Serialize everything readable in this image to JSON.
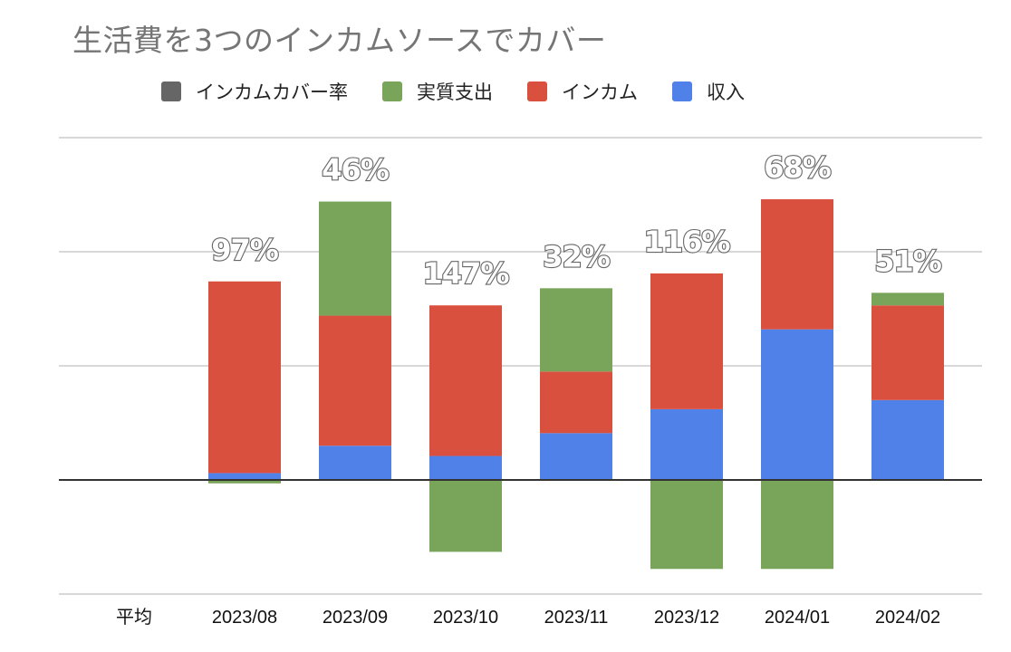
{
  "chart_data": {
    "type": "bar",
    "stacked": true,
    "title": "生活費を3つのインカムソースでカバー",
    "xlabel": "",
    "ylabel": "",
    "y_axis_labels_visible": false,
    "ylim": [
      -1,
      3
    ],
    "y_units_note": "values in gridline units (no y-axis tick labels shown)",
    "grid": true,
    "legend_position": "top",
    "categories": [
      "平均",
      "2023/08",
      "2023/09",
      "2023/10",
      "2023/11",
      "2023/12",
      "2024/01",
      "2024/02"
    ],
    "series": [
      {
        "name": "収入",
        "color": "#4f81e8",
        "values": [
          null,
          0.06,
          0.3,
          0.21,
          0.41,
          0.62,
          1.32,
          0.7
        ]
      },
      {
        "name": "インカム",
        "color": "#d9503f",
        "values": [
          null,
          1.68,
          1.14,
          1.32,
          0.54,
          1.19,
          1.14,
          0.83
        ]
      },
      {
        "name": "実質支出",
        "color": "#78a55a",
        "values": [
          null,
          -0.03,
          1.0,
          -0.63,
          0.73,
          -0.78,
          -0.78,
          0.11
        ]
      },
      {
        "name": "インカムカバー率",
        "color": "#666666",
        "type": "data-label",
        "values": [
          null,
          "97%",
          "46%",
          "147%",
          "32%",
          "116%",
          "68%",
          "51%"
        ]
      }
    ],
    "legend": [
      {
        "name": "インカムカバー率",
        "color": "#666666"
      },
      {
        "name": "実質支出",
        "color": "#78a55a"
      },
      {
        "name": "インカム",
        "color": "#d9503f"
      },
      {
        "name": "収入",
        "color": "#4f81e8"
      }
    ]
  }
}
